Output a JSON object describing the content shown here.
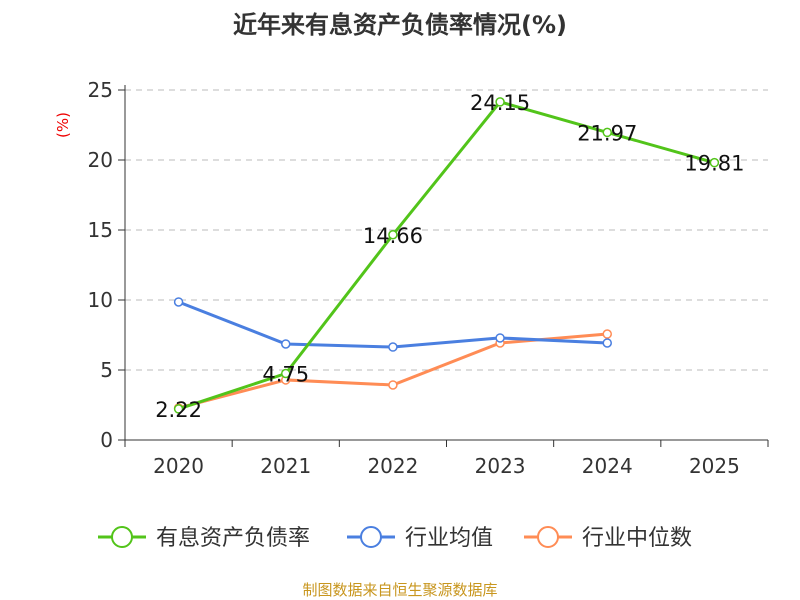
{
  "chart_data": {
    "type": "line",
    "title": "近年来有息资产负债率情况(%)",
    "ylabel": "(%)",
    "categories": [
      "2020",
      "2021",
      "2022",
      "2023",
      "2024",
      "2025"
    ],
    "ylim": [
      0,
      25
    ],
    "yticks": [
      0,
      5,
      10,
      15,
      20,
      25
    ],
    "grid": true,
    "legend_placement": "bottom",
    "series": [
      {
        "name": "有息资产负债率",
        "color": "#52c41a",
        "values": [
          2.22,
          4.75,
          14.66,
          24.15,
          21.97,
          19.81
        ],
        "labels": [
          "2.22",
          "4.75",
          "14.66",
          "24.15",
          "21.97",
          "19.81"
        ]
      },
      {
        "name": "行业均值",
        "color": "#4a7fe0",
        "values": [
          9.86,
          6.86,
          6.64,
          7.29,
          6.93,
          null
        ]
      },
      {
        "name": "行业中位数",
        "color": "#ff8c55",
        "values": [
          2.29,
          4.29,
          3.93,
          6.93,
          7.57,
          null
        ]
      }
    ],
    "source": "制图数据来自恒生聚源数据库"
  }
}
